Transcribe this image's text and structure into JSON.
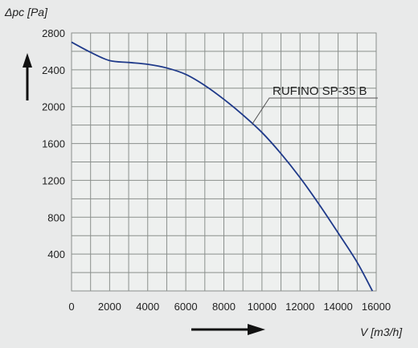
{
  "chart_data": {
    "type": "line",
    "ylabel": "Δpc [Pa]",
    "xlabel": "V [m3/h]",
    "xlim": [
      0,
      16000
    ],
    "ylim": [
      0,
      2800
    ],
    "x_ticks": [
      0,
      2000,
      4000,
      6000,
      8000,
      10000,
      12000,
      14000,
      16000
    ],
    "y_ticks": [
      400,
      800,
      1200,
      1600,
      2000,
      2400,
      2800
    ],
    "grid": true,
    "series": [
      {
        "name": "RUFINO SP-35 B",
        "color": "#1f3a8a",
        "x": [
          0,
          1000,
          2000,
          3000,
          4000,
          5000,
          6000,
          7000,
          8000,
          9000,
          10000,
          11000,
          12000,
          13000,
          14000,
          15000,
          15800
        ],
        "y": [
          2700,
          2590,
          2500,
          2480,
          2460,
          2420,
          2350,
          2230,
          2080,
          1910,
          1720,
          1490,
          1230,
          940,
          630,
          310,
          0
        ]
      }
    ]
  }
}
